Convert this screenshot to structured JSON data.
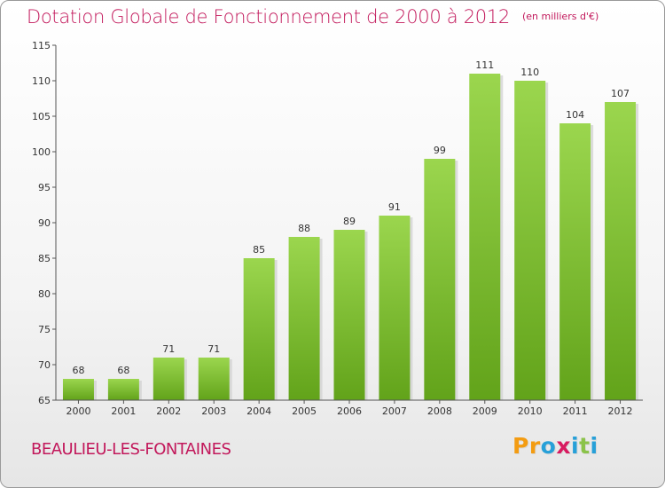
{
  "header": {
    "title": "Dotation Globale de Fonctionnement de 2000 à 2012",
    "subtitle": "(en milliers d'€)"
  },
  "commune": "BEAULIEU-LES-FONTAINES",
  "logo": {
    "text": "Proxiti",
    "letters": [
      {
        "ch": "P",
        "color": "#f39c12"
      },
      {
        "ch": "r",
        "color": "#f39c12"
      },
      {
        "ch": "o",
        "color": "#27a0d8"
      },
      {
        "ch": "x",
        "color": "#d81b60"
      },
      {
        "ch": "i",
        "color": "#27a0d8"
      },
      {
        "ch": "t",
        "color": "#8bc34a"
      },
      {
        "ch": "i",
        "color": "#27a0d8"
      }
    ]
  },
  "colors": {
    "bar_top": "#9bd64e",
    "bar_bottom": "#62a31a",
    "axis": "#555555",
    "grid": "#e4e4e4",
    "title": "#c2185b"
  },
  "chart_data": {
    "type": "bar",
    "title": "Dotation Globale de Fonctionnement de 2000 à 2012",
    "subtitle": "(en milliers d'€)",
    "xlabel": "",
    "ylabel": "",
    "categories": [
      "2000",
      "2001",
      "2002",
      "2003",
      "2004",
      "2005",
      "2006",
      "2007",
      "2008",
      "2009",
      "2010",
      "2011",
      "2012"
    ],
    "values": [
      68,
      68,
      71,
      71,
      85,
      88,
      89,
      91,
      99,
      111,
      110,
      104,
      107
    ],
    "value_labels": [
      "68",
      "68",
      "71",
      "71",
      "85",
      "88",
      "89",
      "91",
      "99",
      "111",
      "110",
      "104",
      "107"
    ],
    "ylim": [
      65,
      115
    ],
    "yticks": [
      65,
      70,
      75,
      80,
      85,
      90,
      95,
      100,
      105,
      110,
      115
    ],
    "grid": false,
    "legend": "none"
  }
}
